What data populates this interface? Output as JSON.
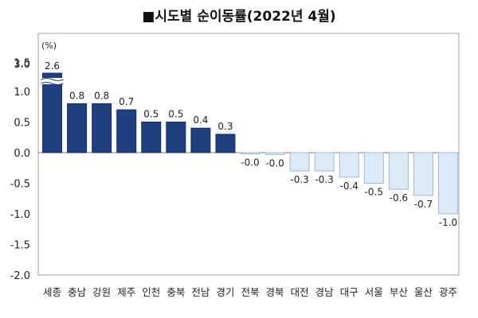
{
  "chart_data": {
    "type": "bar",
    "title": "■시도별 순이동률(2022년 4월)",
    "unit_label": "(%)",
    "categories": [
      "세종",
      "충남",
      "강원",
      "제주",
      "인천",
      "충북",
      "전남",
      "경기",
      "전북",
      "경북",
      "대전",
      "경남",
      "대구",
      "서울",
      "부산",
      "울산",
      "광주"
    ],
    "values": [
      2.6,
      0.8,
      0.8,
      0.7,
      0.5,
      0.5,
      0.4,
      0.3,
      -0.02,
      -0.03,
      -0.3,
      -0.3,
      -0.4,
      -0.5,
      -0.6,
      -0.7,
      -1.0
    ],
    "value_labels": [
      "2.6",
      "0.8",
      "0.8",
      "0.7",
      "0.5",
      "0.5",
      "0.4",
      "0.3",
      "-0.0",
      "-0.0",
      "-0.3",
      "-0.3",
      "-0.4",
      "-0.5",
      "-0.6",
      "-0.7",
      "-1.0"
    ],
    "yticks": [
      "3.0",
      "1.5",
      "1.0",
      "0.5",
      "0.0",
      "-0.5",
      "-1.0",
      "-1.5",
      "-2.0"
    ],
    "ylim": [
      -2.0,
      1.5
    ],
    "axis_break": true,
    "grid": false,
    "colors": {
      "positive": "#1f3f7f",
      "negative": "#dbeaf6",
      "negative_border": "#9fb9d3",
      "plot_border": "#9aa3ad"
    }
  }
}
